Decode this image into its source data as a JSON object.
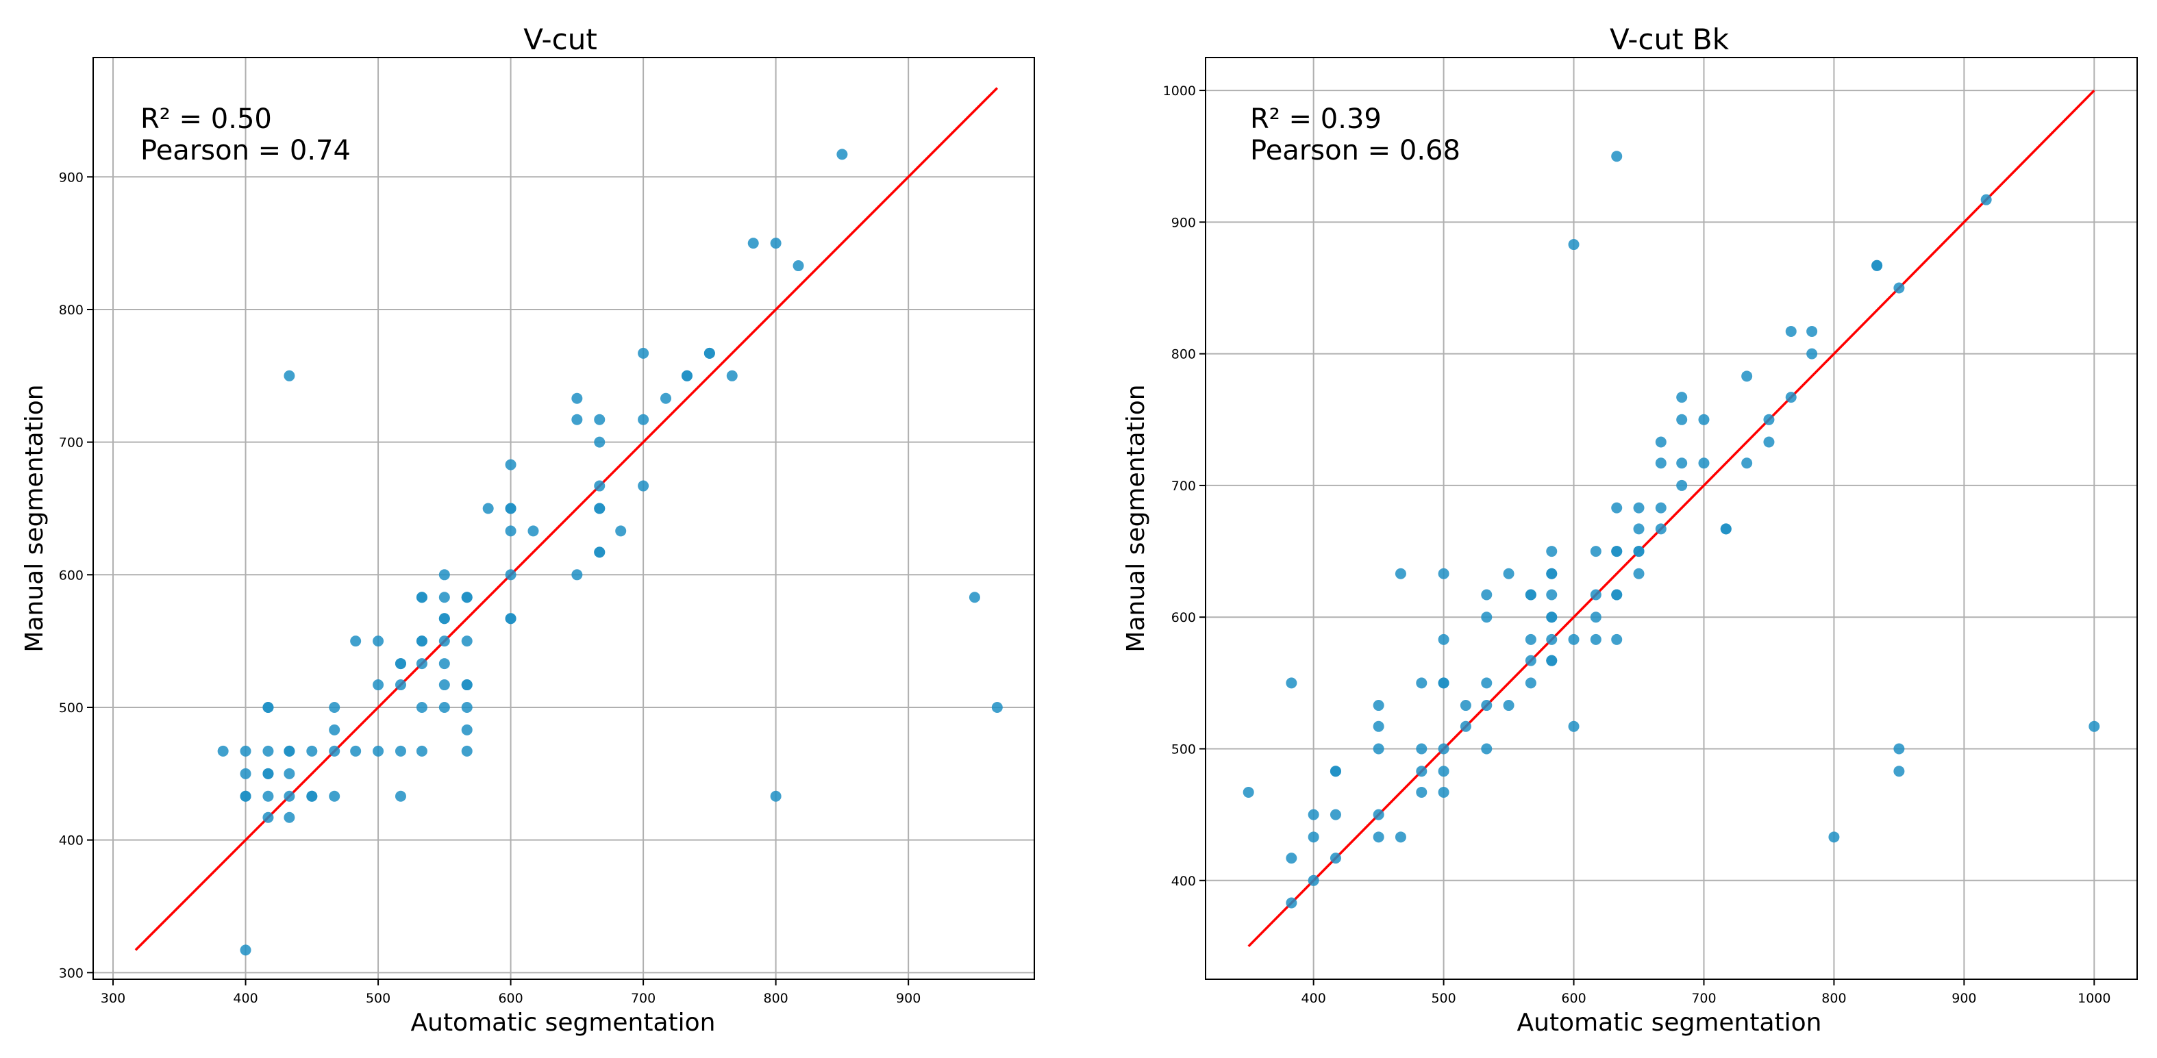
{
  "chart_data": [
    {
      "type": "scatter",
      "title": "V-cut",
      "xlabel": "Automatic segmentation",
      "ylabel": "Manual segmentation",
      "xlim": [
        285,
        995
      ],
      "ylim": [
        295,
        990
      ],
      "xticks": [
        300,
        400,
        500,
        600,
        700,
        800,
        900
      ],
      "yticks": [
        300,
        400,
        500,
        600,
        700,
        800,
        900
      ],
      "grid": true,
      "point_color": "#1f8fc4",
      "line_color": "#ff0000",
      "annotations": [
        "R² = 0.50",
        "Pearson = 0.74"
      ],
      "identity_line": {
        "x": [
          317,
          967
        ],
        "y": [
          317,
          967
        ]
      },
      "points": [
        [
          383,
          467
        ],
        [
          400,
          467
        ],
        [
          400,
          450
        ],
        [
          400,
          433
        ],
        [
          400,
          433
        ],
        [
          400,
          317
        ],
        [
          417,
          500
        ],
        [
          417,
          500
        ],
        [
          417,
          467
        ],
        [
          417,
          450
        ],
        [
          417,
          450
        ],
        [
          417,
          433
        ],
        [
          417,
          417
        ],
        [
          433,
          750
        ],
        [
          433,
          467
        ],
        [
          433,
          467
        ],
        [
          433,
          450
        ],
        [
          433,
          433
        ],
        [
          433,
          417
        ],
        [
          450,
          467
        ],
        [
          450,
          433
        ],
        [
          450,
          433
        ],
        [
          467,
          500
        ],
        [
          467,
          483
        ],
        [
          467,
          467
        ],
        [
          467,
          433
        ],
        [
          483,
          550
        ],
        [
          483,
          467
        ],
        [
          500,
          550
        ],
        [
          500,
          517
        ],
        [
          500,
          467
        ],
        [
          517,
          533
        ],
        [
          517,
          533
        ],
        [
          517,
          517
        ],
        [
          517,
          467
        ],
        [
          517,
          433
        ],
        [
          533,
          583
        ],
        [
          533,
          583
        ],
        [
          533,
          550
        ],
        [
          533,
          550
        ],
        [
          533,
          533
        ],
        [
          533,
          500
        ],
        [
          533,
          467
        ],
        [
          550,
          600
        ],
        [
          550,
          583
        ],
        [
          550,
          567
        ],
        [
          550,
          567
        ],
        [
          550,
          550
        ],
        [
          550,
          533
        ],
        [
          550,
          517
        ],
        [
          550,
          500
        ],
        [
          567,
          583
        ],
        [
          567,
          583
        ],
        [
          567,
          550
        ],
        [
          567,
          517
        ],
        [
          567,
          517
        ],
        [
          567,
          500
        ],
        [
          567,
          483
        ],
        [
          567,
          467
        ],
        [
          583,
          650
        ],
        [
          600,
          683
        ],
        [
          600,
          650
        ],
        [
          600,
          650
        ],
        [
          600,
          633
        ],
        [
          600,
          600
        ],
        [
          600,
          567
        ],
        [
          600,
          567
        ],
        [
          617,
          633
        ],
        [
          650,
          733
        ],
        [
          650,
          717
        ],
        [
          650,
          600
        ],
        [
          667,
          717
        ],
        [
          667,
          700
        ],
        [
          667,
          667
        ],
        [
          667,
          650
        ],
        [
          667,
          650
        ],
        [
          667,
          617
        ],
        [
          667,
          617
        ],
        [
          683,
          633
        ],
        [
          700,
          767
        ],
        [
          700,
          717
        ],
        [
          700,
          667
        ],
        [
          717,
          733
        ],
        [
          733,
          750
        ],
        [
          733,
          750
        ],
        [
          750,
          767
        ],
        [
          750,
          767
        ],
        [
          767,
          750
        ],
        [
          783,
          850
        ],
        [
          800,
          850
        ],
        [
          800,
          433
        ],
        [
          817,
          833
        ],
        [
          850,
          917
        ],
        [
          950,
          583
        ],
        [
          967,
          500
        ]
      ]
    },
    {
      "type": "scatter",
      "title": "V-cut Bk",
      "xlabel": "Automatic segmentation",
      "ylabel": "Manual segmentation",
      "xlim": [
        317,
        1033
      ],
      "ylim": [
        325,
        1025
      ],
      "xticks": [
        400,
        500,
        600,
        700,
        800,
        900,
        1000
      ],
      "yticks": [
        400,
        500,
        600,
        700,
        800,
        900,
        1000
      ],
      "grid": true,
      "point_color": "#1f8fc4",
      "line_color": "#ff0000",
      "annotations": [
        "R² = 0.39",
        "Pearson = 0.68"
      ],
      "identity_line": {
        "x": [
          350,
          1000
        ],
        "y": [
          350,
          1000
        ]
      },
      "points": [
        [
          350,
          467
        ],
        [
          383,
          550
        ],
        [
          383,
          417
        ],
        [
          383,
          383
        ],
        [
          400,
          450
        ],
        [
          400,
          433
        ],
        [
          400,
          400
        ],
        [
          417,
          483
        ],
        [
          417,
          483
        ],
        [
          417,
          450
        ],
        [
          417,
          417
        ],
        [
          450,
          533
        ],
        [
          450,
          517
        ],
        [
          450,
          500
        ],
        [
          450,
          450
        ],
        [
          450,
          433
        ],
        [
          467,
          633
        ],
        [
          467,
          433
        ],
        [
          483,
          550
        ],
        [
          483,
          500
        ],
        [
          483,
          483
        ],
        [
          483,
          467
        ],
        [
          500,
          633
        ],
        [
          500,
          583
        ],
        [
          500,
          550
        ],
        [
          500,
          550
        ],
        [
          500,
          500
        ],
        [
          500,
          483
        ],
        [
          500,
          467
        ],
        [
          517,
          533
        ],
        [
          517,
          517
        ],
        [
          533,
          617
        ],
        [
          533,
          600
        ],
        [
          533,
          550
        ],
        [
          533,
          533
        ],
        [
          533,
          500
        ],
        [
          550,
          633
        ],
        [
          550,
          533
        ],
        [
          567,
          617
        ],
        [
          567,
          617
        ],
        [
          567,
          583
        ],
        [
          567,
          567
        ],
        [
          567,
          550
        ],
        [
          583,
          650
        ],
        [
          583,
          633
        ],
        [
          583,
          633
        ],
        [
          583,
          617
        ],
        [
          583,
          600
        ],
        [
          583,
          600
        ],
        [
          583,
          583
        ],
        [
          583,
          567
        ],
        [
          583,
          567
        ],
        [
          600,
          883
        ],
        [
          600,
          583
        ],
        [
          600,
          517
        ],
        [
          617,
          650
        ],
        [
          617,
          617
        ],
        [
          617,
          600
        ],
        [
          617,
          583
        ],
        [
          633,
          950
        ],
        [
          633,
          683
        ],
        [
          633,
          650
        ],
        [
          633,
          650
        ],
        [
          633,
          617
        ],
        [
          633,
          617
        ],
        [
          633,
          583
        ],
        [
          650,
          683
        ],
        [
          650,
          667
        ],
        [
          650,
          650
        ],
        [
          650,
          650
        ],
        [
          650,
          633
        ],
        [
          667,
          733
        ],
        [
          667,
          717
        ],
        [
          667,
          683
        ],
        [
          667,
          667
        ],
        [
          683,
          767
        ],
        [
          683,
          750
        ],
        [
          683,
          717
        ],
        [
          683,
          700
        ],
        [
          700,
          750
        ],
        [
          700,
          717
        ],
        [
          717,
          667
        ],
        [
          717,
          667
        ],
        [
          733,
          783
        ],
        [
          733,
          717
        ],
        [
          750,
          750
        ],
        [
          750,
          733
        ],
        [
          767,
          817
        ],
        [
          767,
          767
        ],
        [
          783,
          817
        ],
        [
          783,
          800
        ],
        [
          800,
          433
        ],
        [
          833,
          867
        ],
        [
          833,
          867
        ],
        [
          850,
          850
        ],
        [
          850,
          500
        ],
        [
          850,
          483
        ],
        [
          917,
          917
        ],
        [
          1000,
          517
        ]
      ]
    }
  ]
}
